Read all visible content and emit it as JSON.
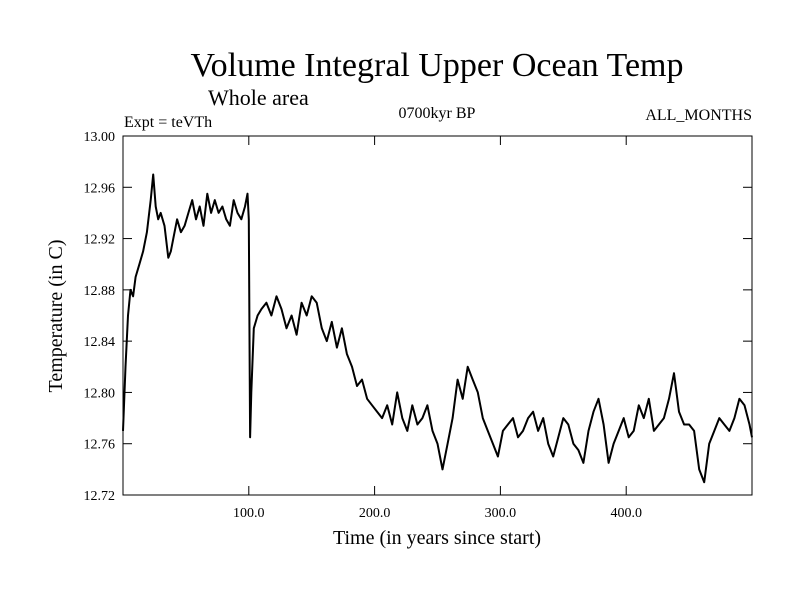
{
  "chart_data": {
    "type": "line",
    "title": "Volume Integral Upper Ocean Temp",
    "subtitle": "Whole area",
    "annotations": {
      "left": "Expt = teVTh",
      "center": "0700kyr BP",
      "right": "ALL_MONTHS"
    },
    "xlabel": "Time (in years since start)",
    "ylabel": "Temperature (in C)",
    "xlim": [
      0,
      500
    ],
    "ylim": [
      12.72,
      13.0
    ],
    "x_ticks": [
      100,
      200,
      300,
      400
    ],
    "x_tick_labels": [
      "100.0",
      "200.0",
      "300.0",
      "400.0"
    ],
    "y_ticks": [
      12.72,
      12.76,
      12.8,
      12.84,
      12.88,
      12.92,
      12.96,
      13.0
    ],
    "y_tick_labels": [
      "12.72",
      "12.76",
      "12.80",
      "12.84",
      "12.88",
      "12.92",
      "12.96",
      "13.00"
    ],
    "grid": false,
    "line_color": "#000000",
    "series": [
      {
        "x": [
          0,
          2,
          4,
          6,
          8,
          10,
          13,
          16,
          19,
          22,
          24,
          26,
          28,
          30,
          33,
          36,
          38,
          40,
          43,
          46,
          49,
          52,
          55,
          58,
          61,
          64,
          67,
          70,
          73,
          76,
          79,
          82,
          85,
          88,
          91,
          94,
          97,
          99,
          100,
          101,
          102,
          104,
          107,
          110,
          114,
          118,
          122,
          126,
          130,
          134,
          138,
          142,
          146,
          150,
          154,
          158,
          162,
          166,
          170,
          174,
          178,
          182,
          186,
          190,
          194,
          198,
          202,
          206,
          210,
          214,
          218,
          222,
          226,
          230,
          234,
          238,
          242,
          246,
          250,
          254,
          258,
          262,
          266,
          270,
          274,
          278,
          282,
          286,
          290,
          294,
          298,
          302,
          306,
          310,
          314,
          318,
          322,
          326,
          330,
          334,
          338,
          342,
          346,
          350,
          354,
          358,
          362,
          366,
          370,
          374,
          378,
          382,
          386,
          390,
          394,
          398,
          402,
          406,
          410,
          414,
          418,
          422,
          426,
          430,
          434,
          438,
          442,
          446,
          450,
          454,
          458,
          462,
          466,
          470,
          474,
          478,
          482,
          486,
          490,
          494,
          498,
          500
        ],
        "y": [
          12.77,
          12.82,
          12.86,
          12.88,
          12.875,
          12.89,
          12.9,
          12.91,
          12.925,
          12.95,
          12.97,
          12.945,
          12.935,
          12.94,
          12.93,
          12.905,
          12.91,
          12.92,
          12.935,
          12.925,
          12.93,
          12.94,
          12.95,
          12.935,
          12.945,
          12.93,
          12.955,
          12.94,
          12.95,
          12.94,
          12.945,
          12.935,
          12.93,
          12.95,
          12.94,
          12.935,
          12.945,
          12.955,
          12.935,
          12.765,
          12.8,
          12.85,
          12.86,
          12.865,
          12.87,
          12.86,
          12.875,
          12.865,
          12.85,
          12.86,
          12.845,
          12.87,
          12.86,
          12.875,
          12.87,
          12.85,
          12.84,
          12.855,
          12.835,
          12.85,
          12.83,
          12.82,
          12.805,
          12.81,
          12.795,
          12.79,
          12.785,
          12.78,
          12.79,
          12.775,
          12.8,
          12.78,
          12.77,
          12.79,
          12.775,
          12.78,
          12.79,
          12.77,
          12.76,
          12.74,
          12.76,
          12.78,
          12.81,
          12.795,
          12.82,
          12.81,
          12.8,
          12.78,
          12.77,
          12.76,
          12.75,
          12.77,
          12.775,
          12.78,
          12.765,
          12.77,
          12.78,
          12.785,
          12.77,
          12.78,
          12.76,
          12.75,
          12.765,
          12.78,
          12.775,
          12.76,
          12.755,
          12.745,
          12.77,
          12.785,
          12.795,
          12.775,
          12.745,
          12.76,
          12.77,
          12.78,
          12.765,
          12.77,
          12.79,
          12.78,
          12.795,
          12.77,
          12.775,
          12.78,
          12.795,
          12.815,
          12.785,
          12.775,
          12.775,
          12.77,
          12.74,
          12.73,
          12.76,
          12.77,
          12.78,
          12.775,
          12.77,
          12.78,
          12.795,
          12.79,
          12.775,
          12.765
        ]
      }
    ]
  }
}
